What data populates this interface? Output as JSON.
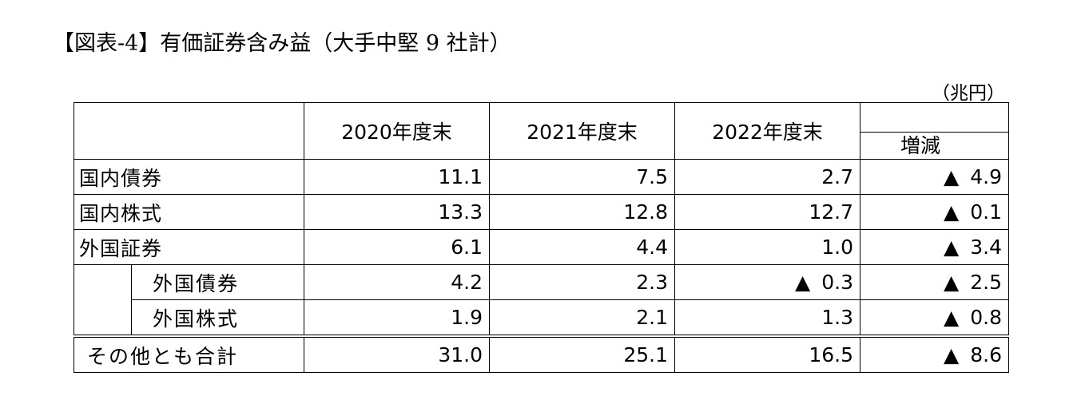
{
  "title": "【図表-4】有価証券含み益（大手中堅 9 社計）",
  "unit": "（兆円）",
  "columns": [
    "2020年度末",
    "2021年度末",
    "2022年度末",
    "増減"
  ],
  "rows": [
    {
      "label": "国内債券",
      "v2020": "11.1",
      "v2021": "7.5",
      "v2022": "2.7",
      "delta": "4.9",
      "delta_neg": true,
      "v2022_neg": false
    },
    {
      "label": "国内株式",
      "v2020": "13.3",
      "v2021": "12.8",
      "v2022": "12.7",
      "delta": "0.1",
      "delta_neg": true,
      "v2022_neg": false
    },
    {
      "label": "外国証券",
      "v2020": "6.1",
      "v2021": "4.4",
      "v2022": "1.0",
      "delta": "3.4",
      "delta_neg": true,
      "v2022_neg": false
    },
    {
      "label": "外国債券",
      "v2020": "4.2",
      "v2021": "2.3",
      "v2022": "0.3",
      "delta": "2.5",
      "delta_neg": true,
      "v2022_neg": true
    },
    {
      "label": "外国株式",
      "v2020": "1.9",
      "v2021": "2.1",
      "v2022": "1.3",
      "delta": "0.8",
      "delta_neg": true,
      "v2022_neg": false
    },
    {
      "label": "その他とも合計",
      "v2020": "31.0",
      "v2021": "25.1",
      "v2022": "16.5",
      "delta": "8.6",
      "delta_neg": true,
      "v2022_neg": false
    }
  ],
  "neg_mark": "▲"
}
